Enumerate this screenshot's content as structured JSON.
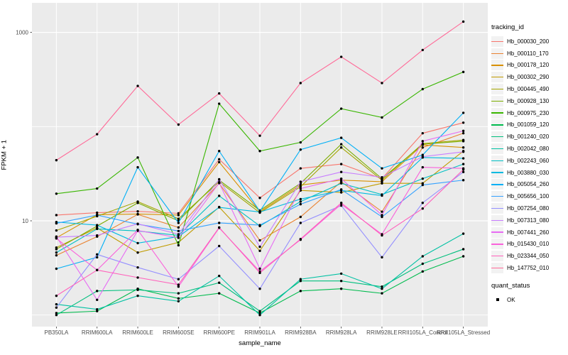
{
  "figure": {
    "legend": {
      "tracking_title": "tracking_id",
      "quant_title": "quant_status",
      "quant_items": [
        {
          "label": "OK"
        }
      ]
    },
    "colors": {
      "panel_bg": "#EBEBEB",
      "grid": "#FFFFFF",
      "axis_text": "#4D4D4D",
      "tick_mark": "#333333",
      "point": "#000000",
      "legend_key_bg": "#F2F2F2"
    }
  },
  "chart_data": {
    "type": "line",
    "title": "",
    "xlabel": "sample_name",
    "ylabel": "FPKM + 1",
    "y_scale": "log10",
    "ylim": [
      0.76,
      1900
    ],
    "y_major_breaks": [
      10,
      1000
    ],
    "y_major_tick_labels": [
      "10",
      "1000"
    ],
    "y_minor_breaks": [
      1,
      100
    ],
    "legend_position": "right",
    "grid": true,
    "point_marker": "black-dot",
    "quant_status": "OK",
    "categories": [
      "PB350LA",
      "RRIM600LA",
      "RRIM600LE",
      "RRIM600SE",
      "RRIM600PE",
      "RRIM901LA",
      "RRIM928BA",
      "RRIM928LA",
      "RRIM928LE",
      "RRII105LA_Control",
      "RRII105LA_Stressed"
    ],
    "series": [
      {
        "name": "Hb_000030_200",
        "color": "#F8766D",
        "values": [
          11.5,
          12.2,
          12.6,
          12.0,
          45,
          17.5,
          36,
          40,
          28,
          85,
          110
        ]
      },
      {
        "name": "Hb_000110_170",
        "color": "#EA8331",
        "values": [
          4.3,
          6.8,
          11.7,
          8.5,
          25,
          6.2,
          11,
          26,
          12.5,
          60,
          85
        ]
      },
      {
        "name": "Hb_000178_120",
        "color": "#D89000",
        "values": [
          6.6,
          11.6,
          11.8,
          11.5,
          42,
          12.5,
          24,
          27,
          26,
          64,
          60
        ]
      },
      {
        "name": "Hb_000302_290",
        "color": "#C09B00",
        "values": [
          5.2,
          8.4,
          4.6,
          5.9,
          14,
          4.8,
          21,
          20,
          25,
          25,
          55
        ]
      },
      {
        "name": "Hb_000445_490",
        "color": "#A3A500",
        "values": [
          7.9,
          11.2,
          16,
          10.5,
          26,
          12.2,
          23,
          60,
          27,
          66,
          72
        ]
      },
      {
        "name": "Hb_000928_130",
        "color": "#7CAE00",
        "values": [
          5.0,
          8.8,
          15.5,
          10.0,
          27,
          12.9,
          25,
          65,
          28,
          65,
          70
        ]
      },
      {
        "name": "Hb_000975_230",
        "color": "#39B600",
        "values": [
          19.4,
          22,
          47,
          5.5,
          175,
          55,
          68,
          155,
          125,
          250,
          380
        ]
      },
      {
        "name": "Hb_001059_120",
        "color": "#00BB4E",
        "values": [
          1.05,
          1.1,
          1.9,
          1.5,
          1.7,
          1.05,
          1.8,
          1.9,
          1.7,
          2.9,
          4.2
        ]
      },
      {
        "name": "Hb_001240_020",
        "color": "#00BF7D",
        "values": [
          1.0,
          1.8,
          1.85,
          1.7,
          2.2,
          1.1,
          2.3,
          2.3,
          2.0,
          3.5,
          5.0
        ]
      },
      {
        "name": "Hb_002042_080",
        "color": "#00C1A3",
        "values": [
          1.3,
          1.15,
          1.6,
          1.4,
          2.6,
          1.0,
          2.4,
          2.75,
          1.9,
          4.2,
          7.3
        ]
      },
      {
        "name": "Hb_002243_060",
        "color": "#00BFC4",
        "values": [
          4.6,
          8.2,
          7.8,
          7.0,
          18.4,
          8.8,
          16,
          25,
          19,
          28,
          40
        ]
      },
      {
        "name": "Hb_003880_030",
        "color": "#00BAE0",
        "values": [
          9.7,
          9.0,
          5.8,
          6.8,
          13.9,
          12.4,
          17,
          21,
          18.5,
          47,
          46
        ]
      },
      {
        "name": "Hb_005054_260",
        "color": "#00B0F6",
        "values": [
          3.1,
          4.1,
          37,
          9.5,
          55,
          12.6,
          57,
          76,
          36,
          50,
          140
        ]
      },
      {
        "name": "Hb_005656_100",
        "color": "#35A2FF",
        "values": [
          9.4,
          11.5,
          9.2,
          7.8,
          9.5,
          9.0,
          15,
          21.5,
          11,
          24,
          27
        ]
      },
      {
        "name": "Hb_007254_080",
        "color": "#9590FF",
        "values": [
          1.2,
          4.4,
          3.2,
          2.4,
          5.4,
          1.9,
          9.5,
          14.5,
          4.1,
          15.5,
          33
        ]
      },
      {
        "name": "Hb_007313_080",
        "color": "#C77CFF",
        "values": [
          6.7,
          7.0,
          9.3,
          7.2,
          27.6,
          5.3,
          26,
          33,
          29,
          48,
          54
        ]
      },
      {
        "name": "Hb_007441_260",
        "color": "#E76BF3",
        "values": [
          6.8,
          1.45,
          7.9,
          6.6,
          25.3,
          3.1,
          22,
          28,
          11.5,
          70,
          90
        ]
      },
      {
        "name": "Hb_015430_010",
        "color": "#FA62DB",
        "values": [
          6.5,
          3.0,
          8.0,
          2.0,
          8.4,
          2.9,
          6.3,
          15,
          7.2,
          37,
          36
        ]
      },
      {
        "name": "Hb_023344_050",
        "color": "#FF62BC",
        "values": [
          1.6,
          3.0,
          2.5,
          2.1,
          8.5,
          2.8,
          6.4,
          15.5,
          7.0,
          13.5,
          35
        ]
      },
      {
        "name": "Hb_147752_010",
        "color": "#FF6A98",
        "values": [
          44,
          83,
          270,
          105,
          225,
          80,
          290,
          550,
          290,
          650,
          1300
        ]
      }
    ]
  }
}
